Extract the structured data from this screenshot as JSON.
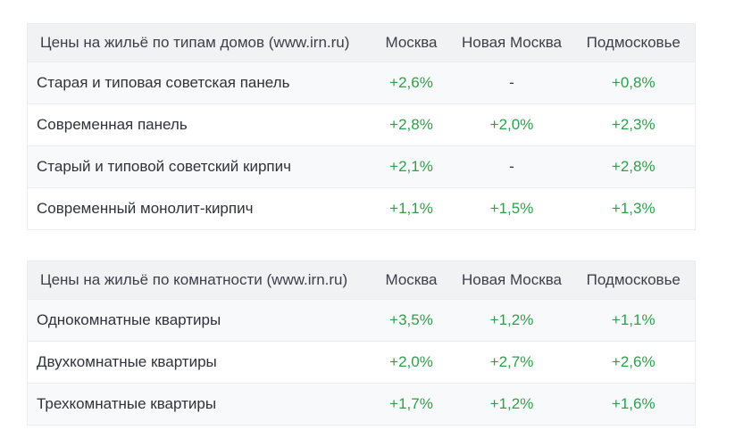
{
  "colors": {
    "positive_value": "#2f9e4b",
    "neutral_value": "#32353c",
    "header_bg": "#f1f2f4",
    "zebra_row_bg": "#f8f9fa",
    "border": "#eaecee",
    "text": "#2f323a"
  },
  "tables": [
    {
      "title": "Цены на жильё по типам домов (www.irn.ru)",
      "columns": [
        "Москва",
        "Новая Москва",
        "Подмосковье"
      ],
      "rows": [
        {
          "label": "Старая и типовая советская панель",
          "values": [
            "+2,6%",
            "-",
            "+0,8%"
          ]
        },
        {
          "label": "Современная панель",
          "values": [
            "+2,8%",
            "+2,0%",
            "+2,3%"
          ]
        },
        {
          "label": "Старый и типовой советский кирпич",
          "values": [
            "+2,1%",
            "-",
            "+2,8%"
          ]
        },
        {
          "label": "Современный монолит-кирпич",
          "values": [
            "+1,1%",
            "+1,5%",
            "+1,3%"
          ]
        }
      ]
    },
    {
      "title": "Цены на жильё по комнатности (www.irn.ru)",
      "columns": [
        "Москва",
        "Новая Москва",
        "Подмосковье"
      ],
      "rows": [
        {
          "label": "Однокомнатные квартиры",
          "values": [
            "+3,5%",
            "+1,2%",
            "+1,1%"
          ]
        },
        {
          "label": "Двухкомнатные квартиры",
          "values": [
            "+2,0%",
            "+2,7%",
            "+2,6%"
          ]
        },
        {
          "label": "Трехкомнатные квартиры",
          "values": [
            "+1,7%",
            "+1,2%",
            "+1,6%"
          ]
        }
      ]
    }
  ],
  "chart_data": [
    {
      "type": "table",
      "title": "Цены на жильё по типам домов (www.irn.ru)",
      "columns": [
        "Москва",
        "Новая Москва",
        "Подмосковье"
      ],
      "rows": [
        [
          "Старая и типовая советская панель",
          "+2,6%",
          "-",
          "+0,8%"
        ],
        [
          "Современная панель",
          "+2,8%",
          "+2,0%",
          "+2,3%"
        ],
        [
          "Старый и типовой советский кирпич",
          "+2,1%",
          "-",
          "+2,8%"
        ],
        [
          "Современный монолит-кирпич",
          "+1,1%",
          "+1,5%",
          "+1,3%"
        ]
      ]
    },
    {
      "type": "table",
      "title": "Цены на жильё по комнатности (www.irn.ru)",
      "columns": [
        "Москва",
        "Новая Москва",
        "Подмосковье"
      ],
      "rows": [
        [
          "Однокомнатные квартиры",
          "+3,5%",
          "+1,2%",
          "+1,1%"
        ],
        [
          "Двухкомнатные квартиры",
          "+2,0%",
          "+2,7%",
          "+2,6%"
        ],
        [
          "Трехкомнатные квартиры",
          "+1,7%",
          "+1,2%",
          "+1,6%"
        ]
      ]
    }
  ]
}
